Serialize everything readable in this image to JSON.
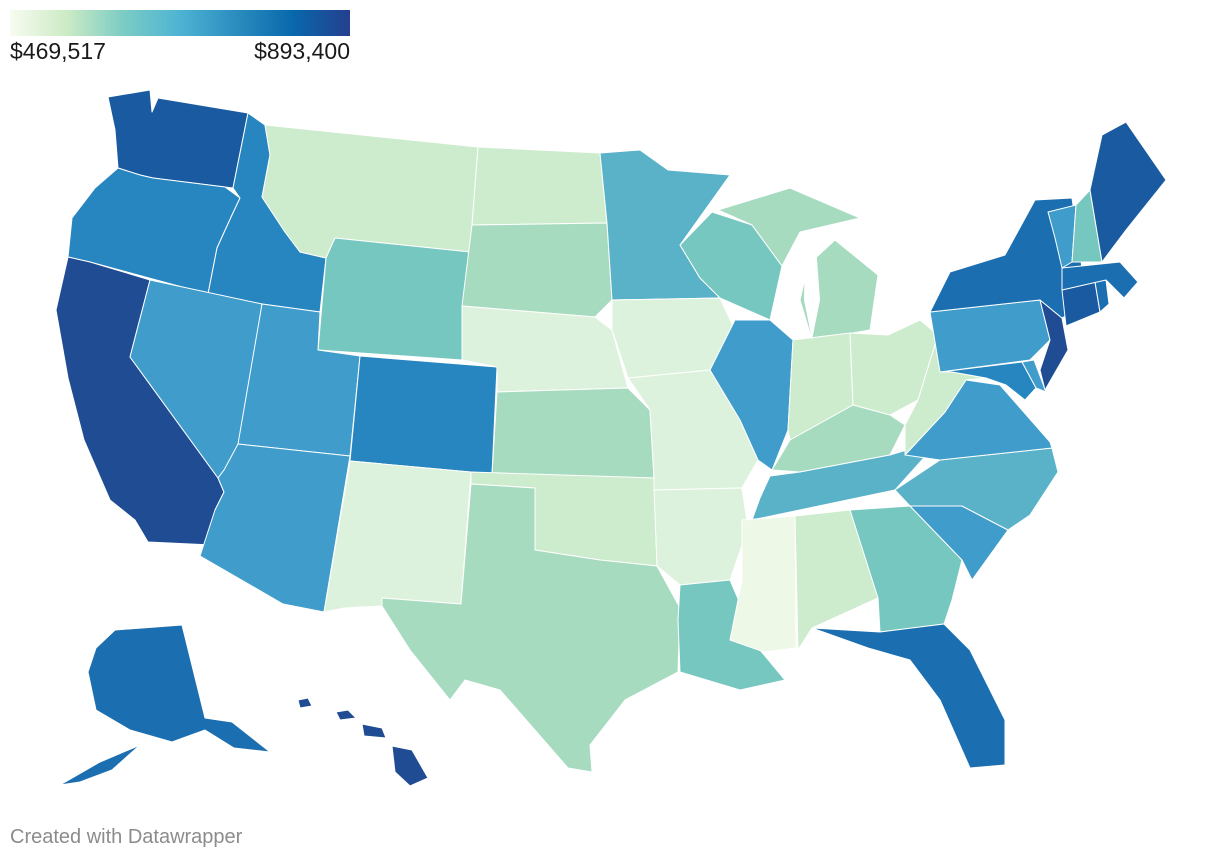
{
  "legend": {
    "min_label": "$469,517",
    "max_label": "$893,400",
    "gradient": [
      "#f7fcf0",
      "#ccebc5",
      "#7bccc4",
      "#4eb3d3",
      "#2b8cbe",
      "#0868ac",
      "#253f8e"
    ]
  },
  "credit": "Created with Datawrapper",
  "colors": {
    "c1": "#eef8e6",
    "c2": "#ddf2dc",
    "c3": "#cdebcd",
    "c4": "#a6dbc0",
    "c5": "#76c7c0",
    "c6": "#5ab2c8",
    "c7": "#3f9ccb",
    "c8": "#2785bf",
    "c9": "#1b6eb0",
    "c10": "#1a5aa1",
    "c11": "#1f4c93"
  },
  "states": [
    {
      "name": "Washington",
      "color": "c10"
    },
    {
      "name": "Oregon",
      "color": "c8"
    },
    {
      "name": "California",
      "color": "c11"
    },
    {
      "name": "Idaho",
      "color": "c8"
    },
    {
      "name": "Nevada",
      "color": "c7"
    },
    {
      "name": "Montana",
      "color": "c3"
    },
    {
      "name": "Wyoming",
      "color": "c5"
    },
    {
      "name": "Utah",
      "color": "c7"
    },
    {
      "name": "Arizona",
      "color": "c7"
    },
    {
      "name": "Colorado",
      "color": "c8"
    },
    {
      "name": "New Mexico",
      "color": "c2"
    },
    {
      "name": "North Dakota",
      "color": "c3"
    },
    {
      "name": "South Dakota",
      "color": "c4"
    },
    {
      "name": "Nebraska",
      "color": "c2"
    },
    {
      "name": "Kansas",
      "color": "c4"
    },
    {
      "name": "Oklahoma",
      "color": "c3"
    },
    {
      "name": "Texas",
      "color": "c4"
    },
    {
      "name": "Minnesota",
      "color": "c6"
    },
    {
      "name": "Iowa",
      "color": "c2"
    },
    {
      "name": "Missouri",
      "color": "c2"
    },
    {
      "name": "Arkansas",
      "color": "c2"
    },
    {
      "name": "Louisiana",
      "color": "c5"
    },
    {
      "name": "Wisconsin",
      "color": "c5"
    },
    {
      "name": "Illinois",
      "color": "c7"
    },
    {
      "name": "Michigan",
      "color": "c4"
    },
    {
      "name": "Indiana",
      "color": "c3"
    },
    {
      "name": "Ohio",
      "color": "c3"
    },
    {
      "name": "Kentucky",
      "color": "c4"
    },
    {
      "name": "Tennessee",
      "color": "c6"
    },
    {
      "name": "Mississippi",
      "color": "c1"
    },
    {
      "name": "Alabama",
      "color": "c3"
    },
    {
      "name": "Georgia",
      "color": "c5"
    },
    {
      "name": "Florida",
      "color": "c9"
    },
    {
      "name": "South Carolina",
      "color": "c7"
    },
    {
      "name": "North Carolina",
      "color": "c6"
    },
    {
      "name": "Virginia",
      "color": "c7"
    },
    {
      "name": "West Virginia",
      "color": "c3"
    },
    {
      "name": "Maryland",
      "color": "c8"
    },
    {
      "name": "Delaware",
      "color": "c7"
    },
    {
      "name": "Pennsylvania",
      "color": "c7"
    },
    {
      "name": "New Jersey",
      "color": "c11"
    },
    {
      "name": "New York",
      "color": "c9"
    },
    {
      "name": "Connecticut",
      "color": "c10"
    },
    {
      "name": "Rhode Island",
      "color": "c9"
    },
    {
      "name": "Massachusetts",
      "color": "c9"
    },
    {
      "name": "Vermont",
      "color": "c7"
    },
    {
      "name": "New Hampshire",
      "color": "c5"
    },
    {
      "name": "Maine",
      "color": "c10"
    },
    {
      "name": "Alaska",
      "color": "c9"
    },
    {
      "name": "Hawaii",
      "color": "c11"
    }
  ]
}
